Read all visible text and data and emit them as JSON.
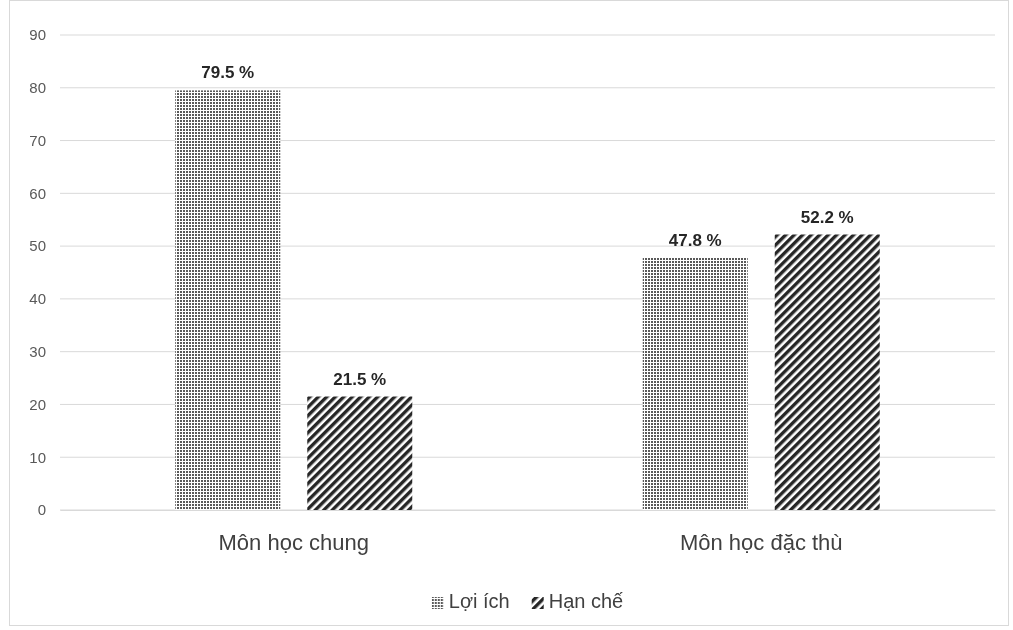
{
  "chart_data": {
    "type": "bar",
    "categories": [
      "Môn học chung",
      "Môn học đặc thù"
    ],
    "series": [
      {
        "name": "Lợi ích",
        "color": "#595959",
        "values": [
          79.5,
          47.8
        ],
        "value_labels": [
          "79.5 %",
          "47.8 %"
        ]
      },
      {
        "name": "Hạn chế",
        "color": "#262626",
        "values": [
          21.5,
          52.2
        ],
        "value_labels": [
          "21.5 %",
          "52.2 %"
        ]
      }
    ],
    "ylim": [
      0,
      90
    ],
    "yticks": [
      0,
      10,
      20,
      30,
      40,
      50,
      60,
      70,
      80,
      90
    ],
    "grid": "y",
    "legend": "bottom"
  }
}
